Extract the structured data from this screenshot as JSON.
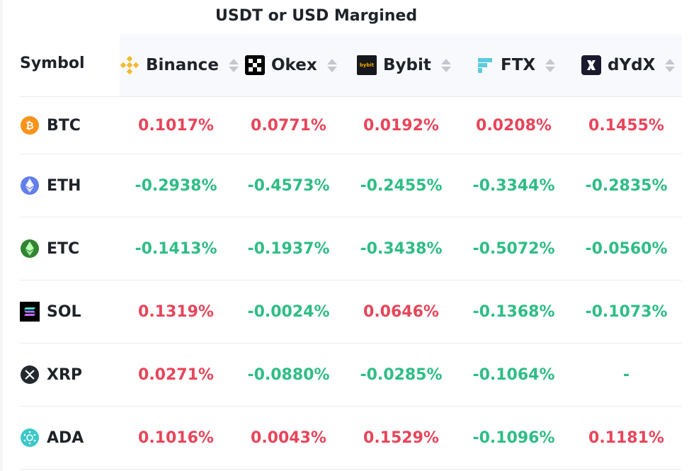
{
  "group_title": "USDT or USD Margined",
  "colors": {
    "positive": "#e8455a",
    "negative": "#2ebd85"
  },
  "header": {
    "symbol_label": "Symbol",
    "exchanges": [
      {
        "name": "Binance",
        "icon": "binance-logo-icon"
      },
      {
        "name": "Okex",
        "icon": "okex-logo-icon"
      },
      {
        "name": "Bybit",
        "icon": "bybit-logo-icon",
        "logo_text": "bybit"
      },
      {
        "name": "FTX",
        "icon": "ftx-logo-icon"
      },
      {
        "name": "dYdX",
        "icon": "dydx-logo-icon"
      }
    ]
  },
  "rows": [
    {
      "symbol": "BTC",
      "icon": "btc-coin-icon",
      "rates": [
        "0.1017%",
        "0.0771%",
        "0.0192%",
        "0.0208%",
        "0.1455%"
      ]
    },
    {
      "symbol": "ETH",
      "icon": "eth-coin-icon",
      "rates": [
        "-0.2938%",
        "-0.4573%",
        "-0.2455%",
        "-0.3344%",
        "-0.2835%"
      ]
    },
    {
      "symbol": "ETC",
      "icon": "etc-coin-icon",
      "rates": [
        "-0.1413%",
        "-0.1937%",
        "-0.3438%",
        "-0.5072%",
        "-0.0560%"
      ]
    },
    {
      "symbol": "SOL",
      "icon": "sol-coin-icon",
      "rates": [
        "0.1319%",
        "-0.0024%",
        "0.0646%",
        "-0.1368%",
        "-0.1073%"
      ]
    },
    {
      "symbol": "XRP",
      "icon": "xrp-coin-icon",
      "rates": [
        "0.0271%",
        "-0.0880%",
        "-0.0285%",
        "-0.1064%",
        "-"
      ]
    },
    {
      "symbol": "ADA",
      "icon": "ada-coin-icon",
      "rates": [
        "0.1016%",
        "0.0043%",
        "0.1529%",
        "-0.1096%",
        "0.1181%"
      ]
    }
  ]
}
